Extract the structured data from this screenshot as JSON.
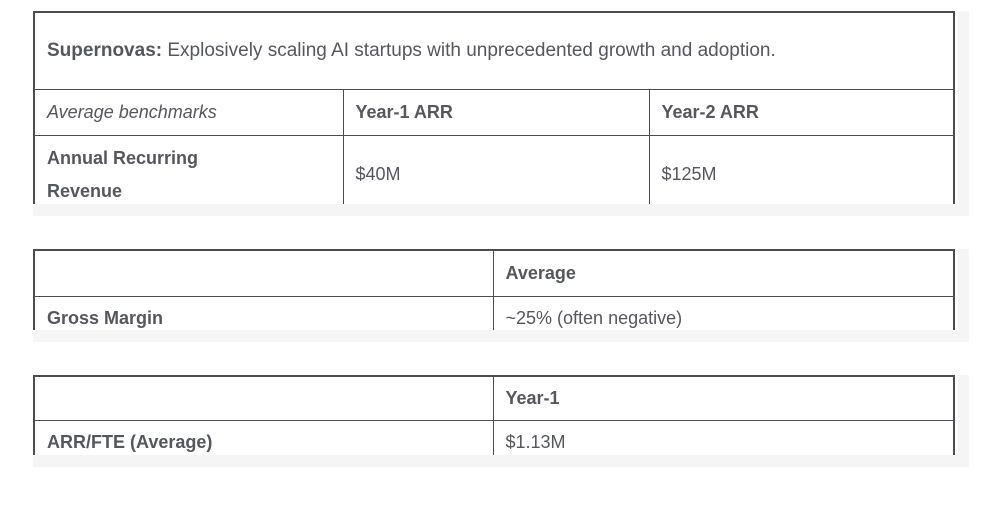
{
  "page": {
    "background": "#ffffff",
    "text_color": "#55575e",
    "border_color": "#4b4c51",
    "scrollbar_track_color": "#f5f5f6"
  },
  "tables": [
    {
      "id": "supernovas-benchmarks",
      "description": {
        "lead": "Supernovas:",
        "text": "Explosively scaling AI startups with unprecedented growth and adoption."
      },
      "header_row": {
        "label": "Average benchmarks",
        "columns": [
          "Year-1 ARR",
          "Year-2 ARR"
        ]
      },
      "rows": [
        {
          "label": "Annual Recurring Revenue",
          "values": [
            "$40M",
            "$125M"
          ]
        }
      ]
    },
    {
      "id": "gross-margin",
      "header_row": {
        "label": "",
        "columns": [
          "Average"
        ]
      },
      "rows": [
        {
          "label": "Gross Margin",
          "values": [
            "~25% (often negative)"
          ]
        }
      ]
    },
    {
      "id": "arr-per-fte",
      "header_row": {
        "label": "",
        "columns": [
          "Year-1"
        ]
      },
      "rows": [
        {
          "label": "ARR/FTE (Average)",
          "values": [
            "$1.13M"
          ]
        }
      ]
    }
  ]
}
